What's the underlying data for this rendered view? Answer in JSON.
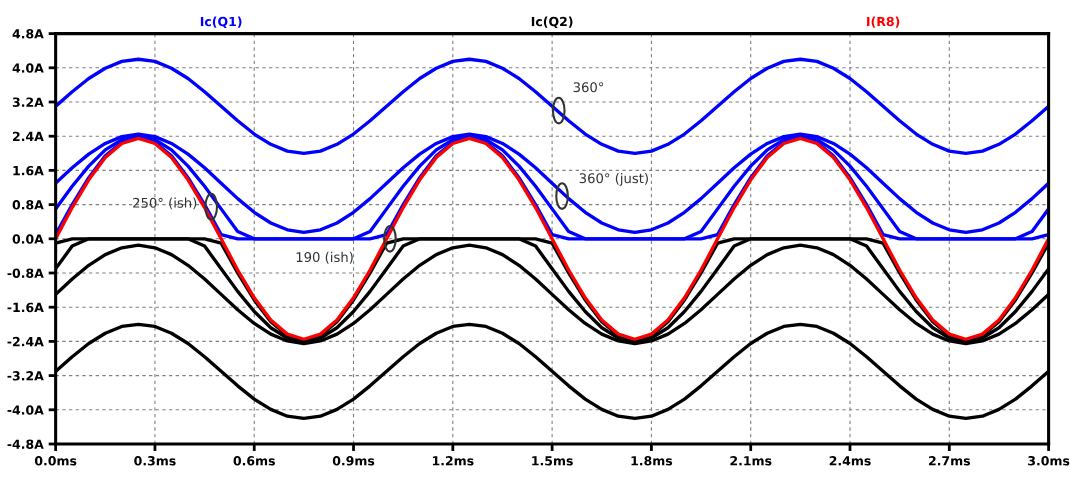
{
  "chart_data": {
    "type": "line",
    "legend": "top",
    "grid": true,
    "marker": "none",
    "line_style": "solid",
    "x": [
      0,
      0.05,
      0.1,
      0.15,
      0.2,
      0.25,
      0.3,
      0.35,
      0.4,
      0.45,
      0.5,
      0.55,
      0.6,
      0.65,
      0.7,
      0.75,
      0.8,
      0.85,
      0.9,
      0.95,
      1.0,
      1.05,
      1.1,
      1.15,
      1.2,
      1.25,
      1.3,
      1.35,
      1.4,
      1.45,
      1.5,
      1.55,
      1.6,
      1.65,
      1.7,
      1.75,
      1.8,
      1.85,
      1.9,
      1.95,
      2.0,
      2.05,
      2.1,
      2.15,
      2.2,
      2.25,
      2.3,
      2.35,
      2.4,
      2.45,
      2.5,
      2.55,
      2.6,
      2.65,
      2.7,
      2.75,
      2.8,
      2.85,
      2.9,
      2.95,
      3.0
    ],
    "xlim": [
      0,
      3.0
    ],
    "xticks": [
      {
        "value": 0,
        "label": "0.0ms"
      },
      {
        "value": 0.3,
        "label": "0.3ms"
      },
      {
        "value": 0.6,
        "label": "0.6ms"
      },
      {
        "value": 0.9,
        "label": "0.9ms"
      },
      {
        "value": 1.2,
        "label": "1.2ms"
      },
      {
        "value": 1.5,
        "label": "1.5ms"
      },
      {
        "value": 1.8,
        "label": "1.8ms"
      },
      {
        "value": 2.1,
        "label": "2.1ms"
      },
      {
        "value": 2.4,
        "label": "2.4ms"
      },
      {
        "value": 2.7,
        "label": "2.7ms"
      },
      {
        "value": 3.0,
        "label": "3.0ms"
      }
    ],
    "ylim": [
      -4.8,
      4.8
    ],
    "yticks": [
      {
        "value": 4.8,
        "label": "4.8A"
      },
      {
        "value": 4.0,
        "label": "4.0A"
      },
      {
        "value": 3.2,
        "label": "3.2A"
      },
      {
        "value": 2.4,
        "label": "2.4A"
      },
      {
        "value": 1.6,
        "label": "1.6A"
      },
      {
        "value": 0.8,
        "label": "0.8A"
      },
      {
        "value": 0,
        "label": "0.0A"
      },
      {
        "value": -0.8,
        "label": "-0.8A"
      },
      {
        "value": -1.6,
        "label": "-1.6A"
      },
      {
        "value": -2.4,
        "label": "-2.4A"
      },
      {
        "value": -3.2,
        "label": "-3.2A"
      },
      {
        "value": -4.0,
        "label": "-4.0A"
      },
      {
        "value": -4.8,
        "label": "-4.8A"
      }
    ],
    "series": [
      {
        "name": "Ic(Q1)",
        "color": "#0000ff",
        "values": [
          3.1,
          3.44,
          3.75,
          3.99,
          4.15,
          4.2,
          4.15,
          3.99,
          3.75,
          3.44,
          3.1,
          2.76,
          2.45,
          2.21,
          2.05,
          2.0,
          2.05,
          2.21,
          2.45,
          2.76,
          3.1,
          3.44,
          3.75,
          3.99,
          4.15,
          4.2,
          4.15,
          3.99,
          3.75,
          3.44,
          3.1,
          2.76,
          2.45,
          2.21,
          2.05,
          2.0,
          2.05,
          2.21,
          2.45,
          2.76,
          3.1,
          3.44,
          3.75,
          3.99,
          4.15,
          4.2,
          4.15,
          3.99,
          3.75,
          3.44,
          3.1,
          2.76,
          2.45,
          2.21,
          2.05,
          2.0,
          2.05,
          2.21,
          2.45,
          2.76,
          3.1
        ]
      },
      {
        "color": "#0000ff",
        "values": [
          1.3,
          1.66,
          1.98,
          2.23,
          2.39,
          2.45,
          2.39,
          2.23,
          1.98,
          1.66,
          1.3,
          0.94,
          0.62,
          0.37,
          0.21,
          0.15,
          0.21,
          0.37,
          0.62,
          0.94,
          1.3,
          1.66,
          1.98,
          2.23,
          2.39,
          2.45,
          2.39,
          2.23,
          1.98,
          1.66,
          1.3,
          0.94,
          0.62,
          0.37,
          0.21,
          0.15,
          0.21,
          0.37,
          0.62,
          0.94,
          1.3,
          1.66,
          1.98,
          2.23,
          2.39,
          2.45,
          2.39,
          2.23,
          1.98,
          1.66,
          1.3,
          0.94,
          0.62,
          0.37,
          0.21,
          0.15,
          0.21,
          0.37,
          0.62,
          0.94,
          1.3
        ]
      },
      {
        "color": "#0000ff",
        "values": [
          0.7,
          1.23,
          1.7,
          2.08,
          2.32,
          2.4,
          2.32,
          2.08,
          1.7,
          1.23,
          0.7,
          0.17,
          0,
          0,
          0,
          0,
          0,
          0,
          0,
          0.17,
          0.7,
          1.23,
          1.7,
          2.08,
          2.32,
          2.4,
          2.32,
          2.08,
          1.7,
          1.23,
          0.7,
          0.17,
          0,
          0,
          0,
          0,
          0,
          0,
          0,
          0.17,
          0.7,
          1.23,
          1.7,
          2.08,
          2.32,
          2.4,
          2.32,
          2.08,
          1.7,
          1.23,
          0.7,
          0.17,
          0,
          0,
          0,
          0,
          0,
          0,
          0,
          0.17,
          0.7
        ]
      },
      {
        "color": "#0000ff",
        "values": [
          0.1,
          0.8,
          1.43,
          1.94,
          2.26,
          2.37,
          2.26,
          1.94,
          1.43,
          0.8,
          0.1,
          0,
          0,
          0,
          0,
          0,
          0,
          0,
          0,
          0,
          0.1,
          0.8,
          1.43,
          1.94,
          2.26,
          2.37,
          2.26,
          1.94,
          1.43,
          0.8,
          0.1,
          0,
          0,
          0,
          0,
          0,
          0,
          0,
          0,
          0,
          0.1,
          0.8,
          1.43,
          1.94,
          2.26,
          2.37,
          2.26,
          1.94,
          1.43,
          0.8,
          0.1,
          0,
          0,
          0,
          0,
          0,
          0,
          0,
          0,
          0,
          0.1
        ]
      },
      {
        "name": "Ic(Q2)",
        "color": "#000000",
        "values": [
          -3.1,
          -2.76,
          -2.45,
          -2.21,
          -2.05,
          -2.0,
          -2.05,
          -2.21,
          -2.45,
          -2.76,
          -3.1,
          -3.44,
          -3.75,
          -3.99,
          -4.15,
          -4.2,
          -4.15,
          -3.99,
          -3.75,
          -3.44,
          -3.1,
          -2.76,
          -2.45,
          -2.21,
          -2.05,
          -2.0,
          -2.05,
          -2.21,
          -2.45,
          -2.76,
          -3.1,
          -3.44,
          -3.75,
          -3.99,
          -4.15,
          -4.2,
          -4.15,
          -3.99,
          -3.75,
          -3.44,
          -3.1,
          -2.76,
          -2.45,
          -2.21,
          -2.05,
          -2.0,
          -2.05,
          -2.21,
          -2.45,
          -2.76,
          -3.1,
          -3.44,
          -3.75,
          -3.99,
          -4.15,
          -4.2,
          -4.15,
          -3.99,
          -3.75,
          -3.44,
          -3.1
        ]
      },
      {
        "color": "#000000",
        "values": [
          -1.3,
          -0.94,
          -0.62,
          -0.37,
          -0.21,
          -0.15,
          -0.21,
          -0.37,
          -0.62,
          -0.94,
          -1.3,
          -1.66,
          -1.98,
          -2.23,
          -2.39,
          -2.45,
          -2.39,
          -2.23,
          -1.98,
          -1.66,
          -1.3,
          -0.94,
          -0.62,
          -0.37,
          -0.21,
          -0.15,
          -0.21,
          -0.37,
          -0.62,
          -0.94,
          -1.3,
          -1.66,
          -1.98,
          -2.23,
          -2.39,
          -2.45,
          -2.39,
          -2.23,
          -1.98,
          -1.66,
          -1.3,
          -0.94,
          -0.62,
          -0.37,
          -0.21,
          -0.15,
          -0.21,
          -0.37,
          -0.62,
          -0.94,
          -1.3,
          -1.66,
          -1.98,
          -2.23,
          -2.39,
          -2.45,
          -2.39,
          -2.23,
          -1.98,
          -1.66,
          -1.3
        ]
      },
      {
        "color": "#000000",
        "values": [
          -0.7,
          -0.17,
          0,
          0,
          0,
          0,
          0,
          0,
          0,
          -0.17,
          -0.7,
          -1.23,
          -1.7,
          -2.08,
          -2.32,
          -2.4,
          -2.32,
          -2.08,
          -1.7,
          -1.23,
          -0.7,
          -0.17,
          0,
          0,
          0,
          0,
          0,
          0,
          0,
          -0.17,
          -0.7,
          -1.23,
          -1.7,
          -2.08,
          -2.32,
          -2.4,
          -2.32,
          -2.08,
          -1.7,
          -1.23,
          -0.7,
          -0.17,
          0,
          0,
          0,
          0,
          0,
          0,
          0,
          -0.17,
          -0.7,
          -1.23,
          -1.7,
          -2.08,
          -2.32,
          -2.4,
          -2.32,
          -2.08,
          -1.7,
          -1.23,
          -0.7
        ]
      },
      {
        "color": "#000000",
        "values": [
          -0.1,
          0,
          0,
          0,
          0,
          0,
          0,
          0,
          0,
          0,
          -0.1,
          -0.8,
          -1.43,
          -1.94,
          -2.26,
          -2.37,
          -2.26,
          -1.94,
          -1.43,
          -0.8,
          -0.1,
          0,
          0,
          0,
          0,
          0,
          0,
          0,
          0,
          0,
          -0.1,
          -0.8,
          -1.43,
          -1.94,
          -2.26,
          -2.37,
          -2.26,
          -1.94,
          -1.43,
          -0.8,
          -0.1,
          0,
          0,
          0,
          0,
          0,
          0,
          0,
          0,
          0,
          -0.1,
          -0.8,
          -1.43,
          -1.94,
          -2.26,
          -2.37,
          -2.26,
          -1.94,
          -1.43,
          -0.8,
          -0.1
        ]
      },
      {
        "name": "I(R8)",
        "color": "#ff0000",
        "values": [
          0,
          0.73,
          1.38,
          1.9,
          2.23,
          2.35,
          2.23,
          1.9,
          1.38,
          0.73,
          0,
          -0.73,
          -1.38,
          -1.9,
          -2.23,
          -2.35,
          -2.23,
          -1.9,
          -1.38,
          -0.73,
          0,
          0.73,
          1.38,
          1.9,
          2.23,
          2.35,
          2.23,
          1.9,
          1.38,
          0.73,
          0,
          -0.73,
          -1.38,
          -1.9,
          -2.23,
          -2.35,
          -2.23,
          -1.9,
          -1.38,
          -0.73,
          0,
          0.73,
          1.38,
          1.9,
          2.23,
          2.35,
          2.23,
          1.9,
          1.38,
          0.73,
          0,
          -0.73,
          -1.38,
          -1.9,
          -2.23,
          -2.35,
          -2.23,
          -1.9,
          -1.38,
          -0.73,
          0
        ]
      }
    ],
    "annotations": [
      {
        "text": "250° (ish)",
        "x": 0.47,
        "y": 0.75
      },
      {
        "text": "190 (ish)",
        "x": 1.01,
        "y": 0.0
      },
      {
        "text": "360°",
        "x": 1.52,
        "y": 3.0
      },
      {
        "text": "360° (just)",
        "x": 1.53,
        "y": 1.0
      }
    ]
  }
}
